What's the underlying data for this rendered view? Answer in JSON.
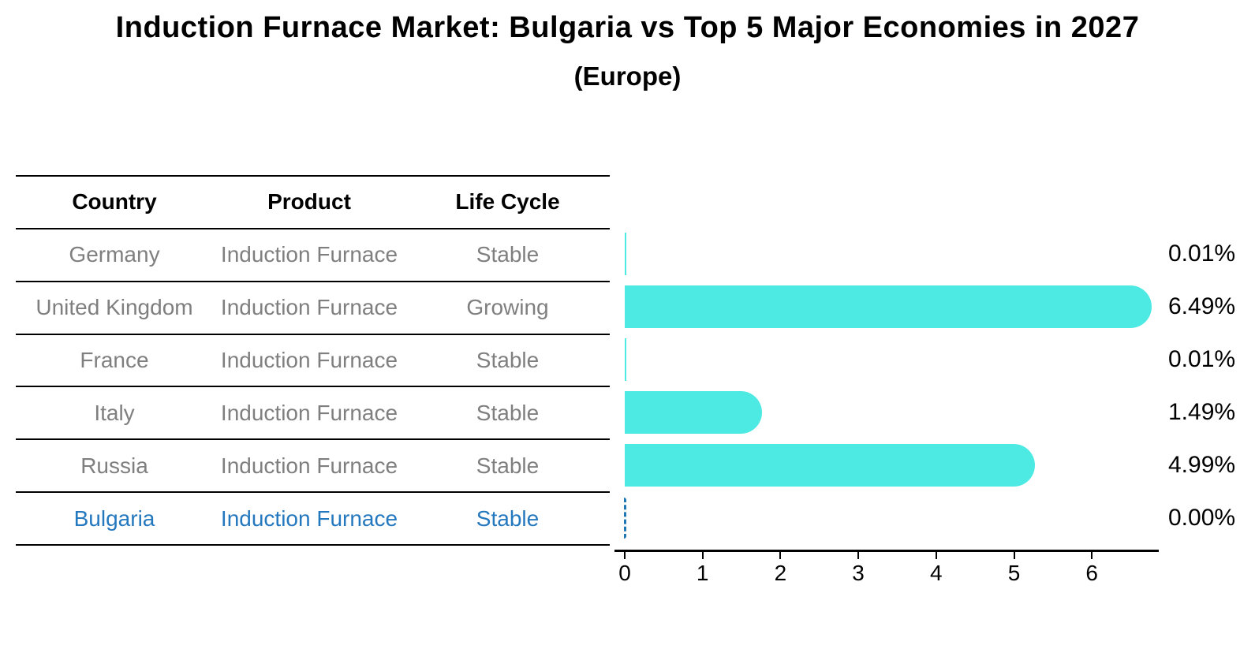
{
  "title": "Induction Furnace Market: Bulgaria vs Top 5 Major Economies in 2027",
  "subtitle": "(Europe)",
  "table": {
    "headers": [
      "Country",
      "Product",
      "Life Cycle"
    ],
    "rows": [
      {
        "country": "Germany",
        "product": "Induction Furnace",
        "life_cycle": "Stable",
        "highlight": false
      },
      {
        "country": "United Kingdom",
        "product": "Induction Furnace",
        "life_cycle": "Growing",
        "highlight": false
      },
      {
        "country": "France",
        "product": "Induction Furnace",
        "life_cycle": "Stable",
        "highlight": false
      },
      {
        "country": "Italy",
        "product": "Induction Furnace",
        "life_cycle": "Stable",
        "highlight": false
      },
      {
        "country": "Russia",
        "product": "Induction Furnace",
        "life_cycle": "Stable",
        "highlight": true
      }
    ],
    "highlight_row": {
      "country": "Bulgaria",
      "product": "Induction Furnace",
      "life_cycle": "Stable"
    }
  },
  "chart_data": {
    "type": "bar",
    "orientation": "horizontal",
    "title": "",
    "xlabel": "",
    "ylabel": "",
    "categories": [
      "Germany",
      "United Kingdom",
      "France",
      "Italy",
      "Russia",
      "Bulgaria"
    ],
    "values": [
      0.01,
      6.49,
      0.01,
      1.49,
      4.99,
      0.0
    ],
    "value_labels": [
      "0.01%",
      "6.49%",
      "0.01%",
      "1.49%",
      "4.99%",
      "0.00%"
    ],
    "xticks": [
      0,
      1,
      2,
      3,
      4,
      5,
      6
    ],
    "xlim": [
      -0.13,
      6.85
    ],
    "grid": false,
    "legend": false,
    "bar_color": "#4de9e3",
    "zero_marker_color": "#1f77b4",
    "highlight_text_color": "#2478be",
    "text_color_muted": "#7f7f7f"
  }
}
